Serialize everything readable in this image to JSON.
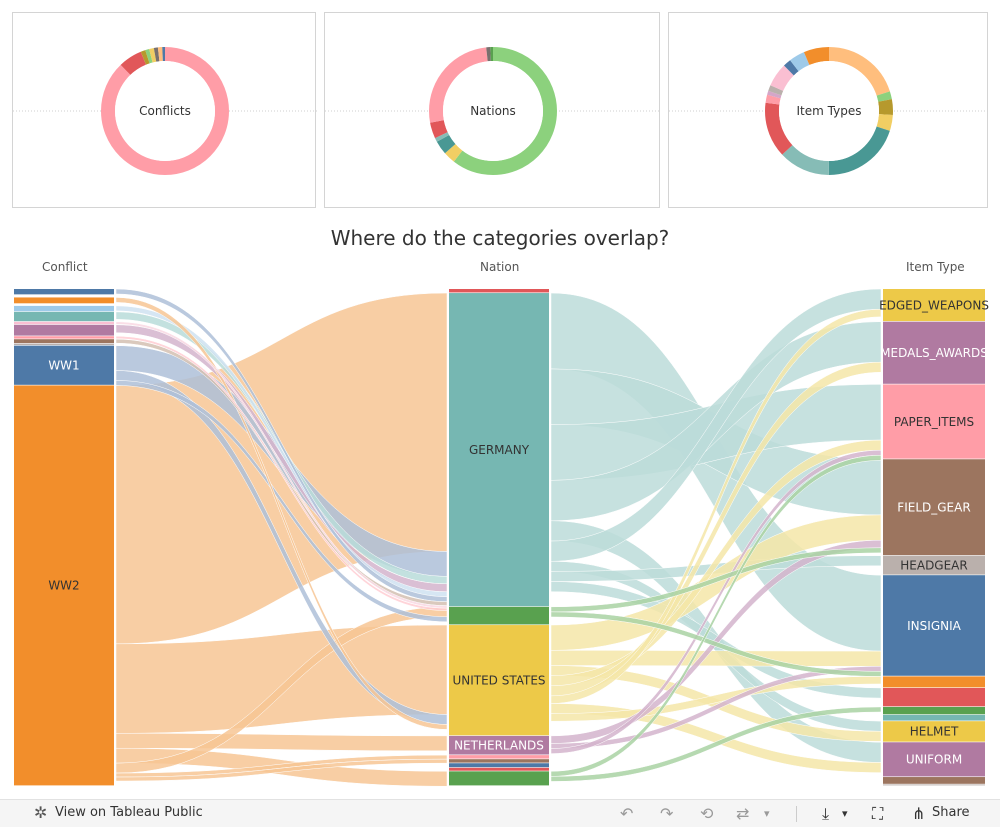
{
  "chart_data": [
    {
      "type": "pie",
      "title": "Conflicts",
      "slices": [
        {
          "value": 88,
          "color": "#ff9da7"
        },
        {
          "value": 6,
          "color": "#e15759"
        },
        {
          "value": 1.2,
          "color": "#b6992d"
        },
        {
          "value": 1,
          "color": "#8cd17d"
        },
        {
          "value": 1.2,
          "color": "#f1ce63"
        },
        {
          "value": 1,
          "color": "#79706e"
        },
        {
          "value": 1.1,
          "color": "#ffbe7d"
        },
        {
          "value": 0.8,
          "color": "#4e79a7"
        }
      ]
    },
    {
      "type": "pie",
      "title": "Nations",
      "slices": [
        {
          "value": 60,
          "color": "#8cd17d"
        },
        {
          "value": 3,
          "color": "#f1ce63"
        },
        {
          "value": 3.5,
          "color": "#499894"
        },
        {
          "value": 1,
          "color": "#86bcb6"
        },
        {
          "value": 4,
          "color": "#e15759"
        },
        {
          "value": 26,
          "color": "#ff9da7"
        },
        {
          "value": 1,
          "color": "#79706e"
        },
        {
          "value": 0.8,
          "color": "#59a14f"
        }
      ]
    },
    {
      "type": "pie",
      "title": "Item Types",
      "slices": [
        {
          "value": 20,
          "color": "#ffbe7d"
        },
        {
          "value": 2,
          "color": "#8cd17d"
        },
        {
          "value": 4,
          "color": "#b6992d"
        },
        {
          "value": 4,
          "color": "#f1ce63"
        },
        {
          "value": 20,
          "color": "#499894"
        },
        {
          "value": 13,
          "color": "#86bcb6"
        },
        {
          "value": 14,
          "color": "#e15759"
        },
        {
          "value": 2,
          "color": "#ff9da7"
        },
        {
          "value": 1,
          "color": "#d4a6c8"
        },
        {
          "value": 1.5,
          "color": "#bab0ac"
        },
        {
          "value": 6,
          "color": "#fabfd2"
        },
        {
          "value": 2,
          "color": "#4e79a7"
        },
        {
          "value": 4,
          "color": "#9ecae9"
        },
        {
          "value": 6.5,
          "color": "#f28e2b"
        }
      ]
    },
    {
      "type": "sankey",
      "title": "Where do the categories overlap?",
      "axes": [
        "Conflict",
        "Nation",
        "Item Type"
      ],
      "conflicts": [
        {
          "label": "",
          "value": 1.2,
          "color": "#4e79a7"
        },
        {
          "label": "",
          "value": 0.5,
          "color": "#ffffff"
        },
        {
          "label": "",
          "value": 1.3,
          "color": "#f28e2b"
        },
        {
          "label": "",
          "value": 0.4,
          "color": "#ffffff"
        },
        {
          "label": "",
          "value": 1.2,
          "color": "#9ecae9"
        },
        {
          "label": "",
          "value": 2,
          "color": "#76b7b2"
        },
        {
          "label": "",
          "value": 0.6,
          "color": "#fabfd2"
        },
        {
          "label": "",
          "value": 2.3,
          "color": "#b07aa1"
        },
        {
          "label": "",
          "value": 0.6,
          "color": "#ff9da7"
        },
        {
          "label": "",
          "value": 0.9,
          "color": "#9c755f"
        },
        {
          "label": "",
          "value": 0.4,
          "color": "#bab0ac"
        },
        {
          "label": "WW1",
          "value": 8,
          "color": "#4e79a7"
        },
        {
          "label": "WW2",
          "value": 80.6,
          "color": "#f28e2b"
        }
      ],
      "nations": [
        {
          "label": "",
          "value": 0.8,
          "color": "#e15759"
        },
        {
          "label": "GERMANY",
          "value": 62,
          "color": "#76b7b2"
        },
        {
          "label": "",
          "value": 3.6,
          "color": "#59a14f"
        },
        {
          "label": "UNITED STATES",
          "value": 21.9,
          "color": "#edc948"
        },
        {
          "label": "NETHERLANDS",
          "value": 3.8,
          "color": "#b07aa1"
        },
        {
          "label": "",
          "value": 0.8,
          "color": "#ff9da7"
        },
        {
          "label": "",
          "value": 0.8,
          "color": "#9c755f"
        },
        {
          "label": "",
          "value": 0.9,
          "color": "#4e79a7"
        },
        {
          "label": "",
          "value": 0.7,
          "color": "#e15759"
        },
        {
          "label": "",
          "value": 2.9,
          "color": "#59a14f"
        }
      ],
      "item_types": [
        {
          "label": "EDGED_WEAPONS",
          "value": 6.2,
          "color": "#edc948"
        },
        {
          "label": "MEDALS_AWARDS",
          "value": 11.9,
          "color": "#b07aa1"
        },
        {
          "label": "PAPER_ITEMS",
          "value": 14.2,
          "color": "#ff9da7"
        },
        {
          "label": "FIELD_GEAR",
          "value": 18.3,
          "color": "#9c755f"
        },
        {
          "label": "HEADGEAR",
          "value": 3.7,
          "color": "#bab0ac"
        },
        {
          "label": "INSIGNIA",
          "value": 19.2,
          "color": "#4e79a7"
        },
        {
          "label": "",
          "value": 2.2,
          "color": "#f28e2b"
        },
        {
          "label": "",
          "value": 3.6,
          "color": "#e15759"
        },
        {
          "label": "",
          "value": 1.5,
          "color": "#59a14f"
        },
        {
          "label": "",
          "value": 1.2,
          "color": "#76b7b2"
        },
        {
          "label": "HELMET",
          "value": 4,
          "color": "#edc948"
        },
        {
          "label": "UNIFORM",
          "value": 6.6,
          "color": "#b07aa1"
        },
        {
          "label": "",
          "value": 1.4,
          "color": "#9c755f"
        },
        {
          "label": "",
          "value": 0.3,
          "color": "#bab0ac"
        }
      ],
      "flows_left": [
        {
          "from": 12,
          "to": 1,
          "value": 52,
          "color": "#f7c594"
        },
        {
          "from": 12,
          "to": 3,
          "value": 18,
          "color": "#f7c594"
        },
        {
          "from": 12,
          "to": 4,
          "value": 3,
          "color": "#f7c594"
        },
        {
          "from": 12,
          "to": 9,
          "value": 3,
          "color": "#f7c594"
        },
        {
          "from": 12,
          "to": 2,
          "value": 2,
          "color": "#f7c594"
        },
        {
          "from": 12,
          "to": 5,
          "value": 0.8,
          "color": "#f7c594"
        },
        {
          "from": 12,
          "to": 6,
          "value": 0.8,
          "color": "#f7c594"
        },
        {
          "from": 11,
          "to": 1,
          "value": 5,
          "color": "#aebfd8"
        },
        {
          "from": 11,
          "to": 3,
          "value": 2,
          "color": "#aebfd8"
        },
        {
          "from": 11,
          "to": 2,
          "value": 1,
          "color": "#aebfd8"
        },
        {
          "from": 5,
          "to": 1,
          "value": 1.5,
          "color": "#b9dcd9"
        },
        {
          "from": 7,
          "to": 1,
          "value": 1.6,
          "color": "#d4b4cc"
        },
        {
          "from": 4,
          "to": 1,
          "value": 1,
          "color": "#cfe2f1"
        },
        {
          "from": 2,
          "to": 3,
          "value": 1,
          "color": "#f7c594"
        },
        {
          "from": 0,
          "to": 1,
          "value": 1,
          "color": "#aebfd8"
        },
        {
          "from": 9,
          "to": 1,
          "value": 0.8,
          "color": "#d3c0b2"
        },
        {
          "from": 6,
          "to": 1,
          "value": 0.5,
          "color": "#f9d8e3"
        },
        {
          "from": 8,
          "to": 1,
          "value": 0.5,
          "color": "#ffcdd2"
        }
      ],
      "flows_right": [
        {
          "from": 1,
          "to": 5,
          "value": 15,
          "color": "#bcdcd9"
        },
        {
          "from": 1,
          "to": 3,
          "value": 11,
          "color": "#bcdcd9"
        },
        {
          "from": 1,
          "to": 2,
          "value": 11,
          "color": "#bcdcd9"
        },
        {
          "from": 1,
          "to": 1,
          "value": 8,
          "color": "#bcdcd9"
        },
        {
          "from": 1,
          "to": 11,
          "value": 4,
          "color": "#bcdcd9"
        },
        {
          "from": 1,
          "to": 0,
          "value": 4,
          "color": "#bcdcd9"
        },
        {
          "from": 1,
          "to": 10,
          "value": 2,
          "color": "#bcdcd9"
        },
        {
          "from": 1,
          "to": 4,
          "value": 2,
          "color": "#bcdcd9"
        },
        {
          "from": 1,
          "to": 7,
          "value": 2,
          "color": "#bcdcd9"
        },
        {
          "from": 3,
          "to": 3,
          "value": 5,
          "color": "#f5e6a8"
        },
        {
          "from": 3,
          "to": 5,
          "value": 3,
          "color": "#f5e6a8"
        },
        {
          "from": 3,
          "to": 10,
          "value": 2,
          "color": "#f5e6a8"
        },
        {
          "from": 3,
          "to": 2,
          "value": 2,
          "color": "#f5e6a8"
        },
        {
          "from": 3,
          "to": 1,
          "value": 2,
          "color": "#f5e6a8"
        },
        {
          "from": 3,
          "to": 0,
          "value": 1.5,
          "color": "#f5e6a8"
        },
        {
          "from": 3,
          "to": 11,
          "value": 2,
          "color": "#f5e6a8"
        },
        {
          "from": 3,
          "to": 6,
          "value": 1.5,
          "color": "#f5e6a8"
        },
        {
          "from": 4,
          "to": 3,
          "value": 1.5,
          "color": "#d4b4cc"
        },
        {
          "from": 4,
          "to": 5,
          "value": 1,
          "color": "#d4b4cc"
        },
        {
          "from": 4,
          "to": 2,
          "value": 1,
          "color": "#d4b4cc"
        },
        {
          "from": 2,
          "to": 3,
          "value": 1,
          "color": "#a9d2a3"
        },
        {
          "from": 2,
          "to": 5,
          "value": 1,
          "color": "#a9d2a3"
        },
        {
          "from": 9,
          "to": 2,
          "value": 1,
          "color": "#a9d2a3"
        },
        {
          "from": 9,
          "to": 8,
          "value": 1,
          "color": "#a9d2a3"
        }
      ]
    }
  ],
  "toolbar": {
    "view_label": "View on Tableau Public",
    "share_label": "Share"
  },
  "icons": {
    "tableau": "✲",
    "undo": "↶",
    "redo": "↷",
    "revert": "⟲",
    "refresh": "⇄",
    "download": "⤓",
    "fullscreen": "⛶",
    "share": "⋔",
    "caret": "▾"
  }
}
